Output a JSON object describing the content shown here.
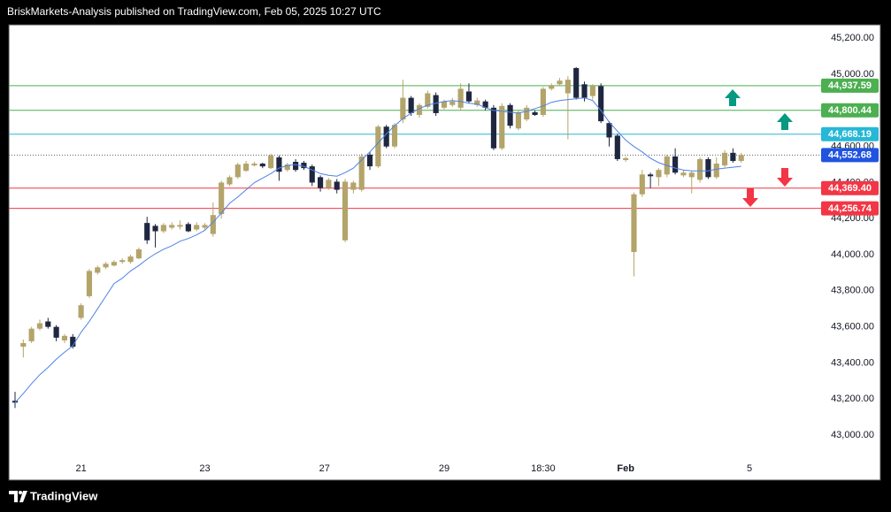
{
  "header": "BriskMarkets-Analysis published on TradingView.com, Feb 05, 2025 10:27 UTC",
  "footer": "TradingView",
  "chart_data": {
    "type": "candlestick",
    "up_color": "#b3a46a",
    "down_color": "#1f2740",
    "ma_color": "#4d82e8",
    "open": [
      43190,
      43490,
      43520,
      43590,
      43630,
      43600,
      43525,
      43545,
      43650,
      43770,
      43900,
      43930,
      43940,
      43960,
      43960,
      43980,
      44176,
      44160,
      44130,
      44150,
      44155,
      44170,
      44140,
      44150,
      44115,
      44225,
      44390,
      44430,
      44465,
      44495,
      44505,
      44480,
      44540,
      44470,
      44515,
      44510,
      44490,
      44430,
      44370,
      44405,
      44080,
      44360,
      44360,
      44555,
      44490,
      44710,
      44600,
      44750,
      44870,
      44775,
      44820,
      44885,
      44815,
      44830,
      44815,
      44905,
      44830,
      44850,
      44815,
      44590,
      44830,
      44700,
      44750,
      44790,
      44775,
      44920,
      44945,
      44895,
      45035,
      44945,
      44880,
      44935,
      44730,
      44660,
      44525,
      44015,
      44335,
      44445,
      44430,
      44445,
      44545,
      44440,
      44430,
      44415,
      44530,
      44430,
      44495,
      44565,
      44520
    ],
    "high": [
      43240,
      43530,
      43600,
      43640,
      43650,
      43610,
      43560,
      43560,
      43730,
      43920,
      43940,
      43960,
      43970,
      43980,
      44000,
      44040,
      44210,
      44170,
      44175,
      44180,
      44190,
      44180,
      44180,
      44175,
      44290,
      44410,
      44440,
      44510,
      44520,
      44515,
      44510,
      44560,
      44550,
      44510,
      44530,
      44520,
      44500,
      44440,
      44425,
      44420,
      44420,
      44410,
      44560,
      44570,
      44720,
      44720,
      44730,
      44970,
      44880,
      44840,
      44910,
      44900,
      44860,
      44870,
      44950,
      44950,
      44870,
      44860,
      44830,
      44840,
      44840,
      44800,
      44830,
      44800,
      44930,
      44950,
      44980,
      44990,
      45040,
      44960,
      44945,
      44950,
      44740,
      44670,
      44545,
      44345,
      44470,
      44455,
      44480,
      44555,
      44590,
      44470,
      44465,
      44540,
      44540,
      44540,
      44580,
      44590,
      44565
    ],
    "low": [
      43150,
      43430,
      43510,
      43580,
      43590,
      43520,
      43510,
      43480,
      43640,
      43760,
      43890,
      43920,
      43935,
      43950,
      43950,
      43975,
      44060,
      44040,
      44120,
      44140,
      44140,
      44125,
      44130,
      44140,
      44100,
      44200,
      44380,
      44420,
      44460,
      44490,
      44480,
      44475,
      44410,
      44460,
      44460,
      44470,
      44380,
      44350,
      44360,
      44340,
      44070,
      44340,
      44350,
      44470,
      44480,
      44590,
      44590,
      44730,
      44770,
      44760,
      44810,
      44770,
      44805,
      44820,
      44800,
      44840,
      44820,
      44800,
      44580,
      44580,
      44700,
      44690,
      44740,
      44770,
      44765,
      44910,
      44935,
      44640,
      44860,
      44850,
      44860,
      44730,
      44600,
      44520,
      44515,
      43880,
      44320,
      44370,
      44380,
      44430,
      44445,
      44430,
      44340,
      44400,
      44420,
      44420,
      44485,
      44510,
      44510
    ],
    "close": [
      43180,
      43510,
      43590,
      43620,
      43600,
      43540,
      43550,
      43490,
      43720,
      43910,
      43930,
      43950,
      43960,
      43970,
      43990,
      44030,
      44080,
      44130,
      44165,
      44165,
      44165,
      44130,
      44165,
      44165,
      44220,
      44400,
      44430,
      44500,
      44505,
      44505,
      44490,
      44550,
      44460,
      44500,
      44470,
      44480,
      44400,
      44370,
      44415,
      44360,
      44405,
      44400,
      44545,
      44490,
      44710,
      44600,
      44720,
      44870,
      44785,
      44830,
      44895,
      44785,
      44850,
      44850,
      44920,
      44850,
      44855,
      44815,
      44590,
      44825,
      44715,
      44790,
      44815,
      44775,
      44920,
      44940,
      44965,
      44970,
      44870,
      44870,
      44935,
      44740,
      44650,
      44530,
      44535,
      44335,
      44445,
      44435,
      44470,
      44545,
      44455,
      44455,
      44455,
      44530,
      44430,
      44505,
      44565,
      44520,
      44552.68
    ],
    "ma": [
      43180,
      43230,
      43285,
      43335,
      43375,
      43420,
      43460,
      43495,
      43570,
      43630,
      43700,
      43770,
      43840,
      43870,
      43910,
      43940,
      43975,
      44005,
      44030,
      44050,
      44075,
      44090,
      44110,
      44135,
      44180,
      44230,
      44285,
      44320,
      44360,
      44400,
      44425,
      44450,
      44480,
      44495,
      44500,
      44490,
      44470,
      44450,
      44440,
      44435,
      44455,
      44480,
      44525,
      44570,
      44620,
      44670,
      44715,
      44755,
      44785,
      44810,
      44830,
      44840,
      44850,
      44855,
      44850,
      44840,
      44835,
      44815,
      44800,
      44795,
      44790,
      44785,
      44795,
      44810,
      44825,
      44845,
      44855,
      44860,
      44865,
      44870,
      44855,
      44800,
      44735,
      44685,
      44635,
      44600,
      44570,
      44535,
      44510,
      44495,
      44480,
      44470,
      44465,
      44465,
      44465,
      44475,
      44480,
      44485,
      44490
    ],
    "xlim": [
      -0.75,
      96.5
    ],
    "xticks": [
      {
        "value": 8,
        "label": "21"
      },
      {
        "value": 23,
        "label": "23"
      },
      {
        "value": 37.5,
        "label": "27"
      },
      {
        "value": 52,
        "label": "29"
      },
      {
        "value": 64,
        "label": "18:30"
      },
      {
        "value": 74,
        "label": "Feb"
      },
      {
        "value": 89,
        "label": "5"
      }
    ],
    "ylim": [
      42750,
      45275
    ],
    "yticks": [
      {
        "value": 43000,
        "label": "43,000.00"
      },
      {
        "value": 43200,
        "label": "43,200.00"
      },
      {
        "value": 43400,
        "label": "43,400.00"
      },
      {
        "value": 43600,
        "label": "43,600.00"
      },
      {
        "value": 43800,
        "label": "43,800.00"
      },
      {
        "value": 44000,
        "label": "44,000.00"
      },
      {
        "value": 44200,
        "label": "44,200.00"
      },
      {
        "value": 44400,
        "label": "44,400.00"
      },
      {
        "value": 44600,
        "label": "44,600.00"
      },
      {
        "value": 44800,
        "label": "44,800.00"
      },
      {
        "value": 45000,
        "label": "45,000.00"
      },
      {
        "value": 45200,
        "label": "45,200.00"
      }
    ],
    "levels": [
      {
        "value": 44937.59,
        "label": "44,937.59",
        "color": "#4caf50",
        "style": "solid"
      },
      {
        "value": 44800.44,
        "label": "44,800.44",
        "color": "#4caf50",
        "style": "solid"
      },
      {
        "value": 44668.19,
        "label": "44,668.19",
        "color": "#26b8d6",
        "style": "solid"
      },
      {
        "value": 44552.68,
        "label": "44,552.68",
        "color": "#2053e0",
        "style": "dotted"
      },
      {
        "value": 44369.4,
        "label": "44,369.40",
        "color": "#f23645",
        "style": "solid"
      },
      {
        "value": 44256.74,
        "label": "44,256.74",
        "color": "#f23645",
        "style": "solid"
      }
    ]
  }
}
